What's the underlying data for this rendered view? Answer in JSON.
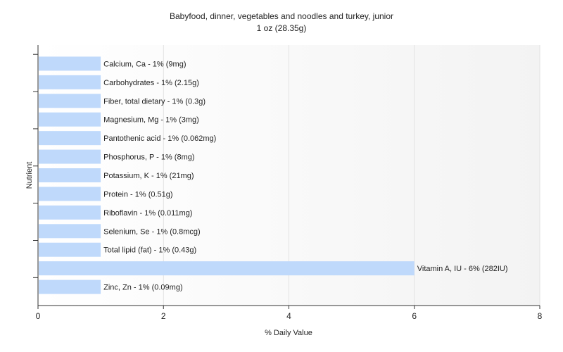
{
  "chart_data": {
    "type": "bar",
    "orientation": "horizontal",
    "title": "Babyfood, dinner, vegetables and noodles and turkey, junior",
    "subtitle": "1 oz (28.35g)",
    "xlabel": "% Daily Value",
    "ylabel": "Nutrient",
    "xlim": [
      0,
      8
    ],
    "xticks": [
      "0",
      "2",
      "4",
      "6",
      "8"
    ],
    "grid": true,
    "bar_color": "#bfd9fb",
    "categories": [
      "Calcium, Ca",
      "Carbohydrates",
      "Fiber, total dietary",
      "Magnesium, Mg",
      "Pantothenic acid",
      "Phosphorus, P",
      "Potassium, K",
      "Protein",
      "Riboflavin",
      "Selenium, Se",
      "Total lipid (fat)",
      "Vitamin A, IU",
      "Zinc, Zn"
    ],
    "values": [
      1,
      1,
      1,
      1,
      1,
      1,
      1,
      1,
      1,
      1,
      1,
      6,
      1
    ],
    "labels": [
      "Calcium, Ca - 1% (9mg)",
      "Carbohydrates - 1% (2.15g)",
      "Fiber, total dietary - 1% (0.3g)",
      "Magnesium, Mg - 1% (3mg)",
      "Pantothenic acid - 1% (0.062mg)",
      "Phosphorus, P - 1% (8mg)",
      "Potassium, K - 1% (21mg)",
      "Protein - 1% (0.51g)",
      "Riboflavin - 1% (0.011mg)",
      "Selenium, Se - 1% (0.8mcg)",
      "Total lipid (fat) - 1% (0.43g)",
      "Vitamin A, IU - 6% (282IU)",
      "Zinc, Zn - 1% (0.09mg)"
    ]
  }
}
